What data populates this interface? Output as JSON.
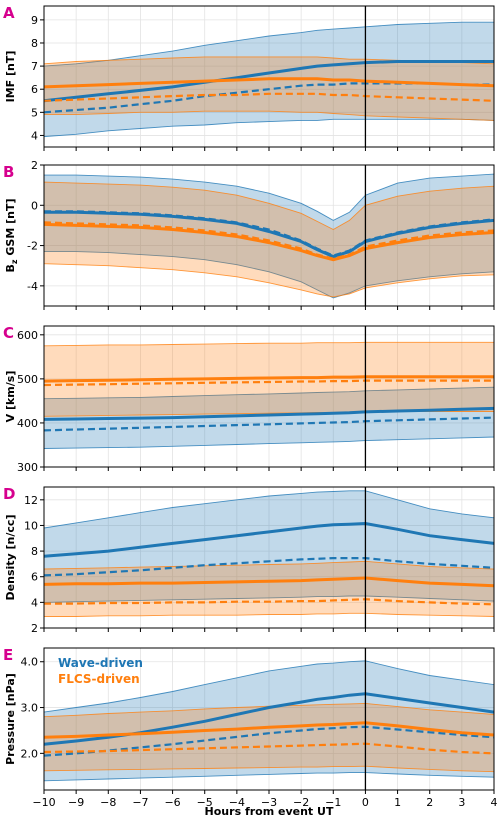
{
  "colors": {
    "wave": "#1f77b4",
    "flcs": "#ff7f0e",
    "panel_label": "#d6008e"
  },
  "legend": {
    "wave": "Wave-driven",
    "flcs": "FLCS-driven"
  },
  "chart_data": {
    "type": "line",
    "xlabel": "Hours from event UT",
    "xlim": [
      -10,
      4
    ],
    "x_ticks": [
      -10,
      -9,
      -8,
      -7,
      -6,
      -5,
      -4,
      -3,
      -2,
      -1,
      0,
      1,
      2,
      3,
      4
    ],
    "x_tick_labels": [
      "−10",
      "−9",
      "−8",
      "−7",
      "−6",
      "−5",
      "−4",
      "−3",
      "−2",
      "−1",
      "0",
      "1",
      "2",
      "3",
      "4"
    ],
    "event_line_x": 0,
    "x": [
      -10,
      -9,
      -8,
      -7,
      -6,
      -5,
      -4,
      -3,
      -2,
      -1.5,
      -1,
      -0.5,
      0,
      1,
      2,
      3,
      4
    ],
    "panels": [
      {
        "label": "A",
        "ylabel": "IMF [nT]",
        "ylim": [
          3.5,
          9.6
        ],
        "yticks": [
          4,
          5,
          6,
          7,
          8,
          9
        ],
        "series": [
          {
            "name": "Wave-driven",
            "mean": [
              5.5,
              5.65,
              5.8,
              5.95,
              6.1,
              6.3,
              6.5,
              6.7,
              6.9,
              7.0,
              7.05,
              7.1,
              7.15,
              7.2,
              7.2,
              7.2,
              7.2
            ],
            "median": [
              5.0,
              5.1,
              5.2,
              5.35,
              5.5,
              5.7,
              5.85,
              6.0,
              6.15,
              6.2,
              6.2,
              6.25,
              6.25,
              6.25,
              6.25,
              6.2,
              6.2
            ],
            "upper": [
              7.0,
              7.1,
              7.25,
              7.45,
              7.65,
              7.9,
              8.1,
              8.3,
              8.45,
              8.55,
              8.6,
              8.65,
              8.7,
              8.8,
              8.85,
              8.9,
              8.9
            ],
            "lower": [
              3.95,
              4.05,
              4.2,
              4.3,
              4.4,
              4.45,
              4.55,
              4.6,
              4.65,
              4.65,
              4.7,
              4.7,
              4.7,
              4.7,
              4.7,
              4.7,
              4.65
            ]
          },
          {
            "name": "FLCS-driven",
            "mean": [
              6.1,
              6.15,
              6.2,
              6.25,
              6.3,
              6.35,
              6.4,
              6.45,
              6.45,
              6.45,
              6.4,
              6.4,
              6.35,
              6.3,
              6.25,
              6.2,
              6.15
            ],
            "median": [
              5.5,
              5.55,
              5.6,
              5.65,
              5.7,
              5.75,
              5.75,
              5.8,
              5.8,
              5.8,
              5.75,
              5.75,
              5.7,
              5.65,
              5.6,
              5.55,
              5.5
            ],
            "upper": [
              7.1,
              7.2,
              7.25,
              7.3,
              7.35,
              7.4,
              7.4,
              7.4,
              7.4,
              7.4,
              7.35,
              7.3,
              7.3,
              7.25,
              7.2,
              7.15,
              7.1
            ],
            "lower": [
              4.9,
              4.9,
              4.95,
              5.0,
              5.0,
              5.05,
              5.05,
              5.05,
              5.0,
              5.0,
              4.95,
              4.9,
              4.85,
              4.8,
              4.75,
              4.7,
              4.65
            ]
          }
        ]
      },
      {
        "label": "B",
        "ylabel": "Bₕ GSM [nT]",
        "ylabel_main": "B",
        "ylabel_sub": "z",
        "ylabel_rest": " GSM [nT]",
        "ylim": [
          -5.0,
          2.0
        ],
        "yticks": [
          -4,
          -2,
          0,
          2
        ],
        "series": [
          {
            "name": "Wave-driven",
            "mean": [
              -0.35,
              -0.35,
              -0.4,
              -0.45,
              -0.55,
              -0.7,
              -0.9,
              -1.3,
              -1.8,
              -2.2,
              -2.55,
              -2.3,
              -1.8,
              -1.4,
              -1.1,
              -0.9,
              -0.75
            ],
            "median": [
              -0.3,
              -0.3,
              -0.35,
              -0.4,
              -0.5,
              -0.65,
              -0.85,
              -1.2,
              -1.75,
              -2.15,
              -2.5,
              -2.25,
              -1.75,
              -1.35,
              -1.05,
              -0.85,
              -0.7
            ],
            "upper": [
              1.5,
              1.5,
              1.45,
              1.4,
              1.3,
              1.15,
              0.95,
              0.6,
              0.1,
              -0.3,
              -0.75,
              -0.35,
              0.5,
              1.1,
              1.35,
              1.45,
              1.55
            ],
            "lower": [
              -2.3,
              -2.3,
              -2.35,
              -2.45,
              -2.55,
              -2.7,
              -2.95,
              -3.3,
              -3.8,
              -4.2,
              -4.6,
              -4.35,
              -4.0,
              -3.75,
              -3.55,
              -3.4,
              -3.3
            ]
          },
          {
            "name": "FLCS-driven",
            "mean": [
              -0.95,
              -1.0,
              -1.05,
              -1.1,
              -1.2,
              -1.35,
              -1.55,
              -1.85,
              -2.25,
              -2.5,
              -2.7,
              -2.5,
              -2.15,
              -1.85,
              -1.6,
              -1.45,
              -1.35
            ],
            "median": [
              -0.85,
              -0.9,
              -0.95,
              -1.0,
              -1.1,
              -1.25,
              -1.45,
              -1.75,
              -2.15,
              -2.45,
              -2.65,
              -2.45,
              -2.05,
              -1.75,
              -1.5,
              -1.35,
              -1.25
            ],
            "upper": [
              1.15,
              1.1,
              1.05,
              1.0,
              0.9,
              0.75,
              0.5,
              0.1,
              -0.4,
              -0.8,
              -1.2,
              -0.75,
              0.0,
              0.45,
              0.7,
              0.85,
              0.95
            ],
            "lower": [
              -2.9,
              -2.95,
              -3.0,
              -3.1,
              -3.2,
              -3.35,
              -3.55,
              -3.85,
              -4.2,
              -4.4,
              -4.55,
              -4.4,
              -4.1,
              -3.85,
              -3.65,
              -3.5,
              -3.45
            ]
          }
        ]
      },
      {
        "label": "C",
        "ylabel": "V [km/s]",
        "ylim": [
          300,
          620
        ],
        "yticks": [
          300,
          400,
          500,
          600
        ],
        "series": [
          {
            "name": "Wave-driven",
            "mean": [
              408,
              409,
              410,
              411,
              412,
              414,
              416,
              418,
              420,
              421,
              422,
              423,
              425,
              427,
              429,
              431,
              433
            ],
            "median": [
              383,
              385,
              387,
              389,
              391,
              393,
              395,
              397,
              399,
              400,
              401,
              402,
              404,
              406,
              408,
              410,
              412
            ],
            "upper": [
              455,
              456,
              457,
              458,
              460,
              462,
              464,
              466,
              468,
              469,
              470,
              471,
              473,
              475,
              477,
              479,
              481
            ],
            "lower": [
              342,
              343,
              344,
              345,
              347,
              349,
              351,
              353,
              355,
              356,
              357,
              358,
              360,
              362,
              364,
              366,
              368
            ]
          },
          {
            "name": "FLCS-driven",
            "mean": [
              495,
              496,
              497,
              498,
              499,
              500,
              501,
              502,
              503,
              503,
              504,
              504,
              505,
              505,
              505,
              505,
              505
            ],
            "median": [
              486,
              487,
              488,
              489,
              490,
              491,
              492,
              493,
              494,
              494,
              495,
              495,
              496,
              496,
              496,
              496,
              496
            ],
            "upper": [
              575,
              576,
              577,
              577,
              578,
              579,
              580,
              581,
              581,
              582,
              582,
              582,
              583,
              583,
              583,
              583,
              583
            ],
            "lower": [
              415,
              416,
              417,
              418,
              419,
              420,
              421,
              422,
              423,
              424,
              424,
              425,
              426,
              426,
              426,
              426,
              426
            ]
          }
        ]
      },
      {
        "label": "D",
        "ylabel": "Density [n/cc]",
        "ylim": [
          2,
          13
        ],
        "yticks": [
          2,
          4,
          6,
          8,
          10,
          12
        ],
        "series": [
          {
            "name": "Wave-driven",
            "mean": [
              7.6,
              7.8,
              8.0,
              8.3,
              8.6,
              8.9,
              9.2,
              9.5,
              9.8,
              9.95,
              10.05,
              10.1,
              10.15,
              9.7,
              9.2,
              8.9,
              8.6
            ],
            "median": [
              6.1,
              6.2,
              6.35,
              6.5,
              6.7,
              6.9,
              7.05,
              7.2,
              7.35,
              7.4,
              7.45,
              7.45,
              7.45,
              7.2,
              7.0,
              6.85,
              6.7
            ],
            "upper": [
              9.8,
              10.2,
              10.6,
              11.0,
              11.4,
              11.7,
              12.0,
              12.3,
              12.5,
              12.6,
              12.65,
              12.7,
              12.7,
              12.0,
              11.3,
              10.9,
              10.6
            ],
            "lower": [
              4.0,
              4.05,
              4.1,
              4.15,
              4.2,
              4.25,
              4.3,
              4.35,
              4.4,
              4.45,
              4.45,
              4.5,
              4.5,
              4.4,
              4.3,
              4.2,
              4.1
            ]
          },
          {
            "name": "FLCS-driven",
            "mean": [
              5.4,
              5.45,
              5.45,
              5.5,
              5.5,
              5.55,
              5.6,
              5.65,
              5.7,
              5.75,
              5.8,
              5.85,
              5.9,
              5.7,
              5.5,
              5.4,
              5.3
            ],
            "median": [
              3.9,
              3.9,
              3.95,
              3.95,
              4.0,
              4.0,
              4.05,
              4.05,
              4.1,
              4.1,
              4.15,
              4.2,
              4.25,
              4.1,
              4.0,
              3.9,
              3.85
            ],
            "upper": [
              6.6,
              6.65,
              6.7,
              6.75,
              6.8,
              6.85,
              6.9,
              6.95,
              7.0,
              7.05,
              7.1,
              7.15,
              7.2,
              7.0,
              6.8,
              6.7,
              6.6
            ],
            "lower": [
              2.9,
              2.9,
              2.95,
              2.95,
              3.0,
              3.0,
              3.0,
              3.05,
              3.05,
              3.1,
              3.1,
              3.15,
              3.15,
              3.05,
              3.0,
              2.95,
              2.9
            ]
          }
        ]
      },
      {
        "label": "E",
        "ylabel": "Pressure [nPa]",
        "ylim": [
          1.2,
          4.3
        ],
        "yticks": [
          2.0,
          3.0,
          4.0
        ],
        "y_tick_labels": [
          "2.0",
          "3.0",
          "4.0"
        ],
        "series": [
          {
            "name": "Wave-driven",
            "mean": [
              2.2,
              2.27,
              2.35,
              2.45,
              2.57,
              2.7,
              2.85,
              3.0,
              3.12,
              3.18,
              3.22,
              3.27,
              3.3,
              3.2,
              3.1,
              3.0,
              2.9
            ],
            "median": [
              1.95,
              2.0,
              2.06,
              2.13,
              2.2,
              2.28,
              2.36,
              2.44,
              2.5,
              2.53,
              2.55,
              2.57,
              2.58,
              2.52,
              2.46,
              2.4,
              2.35
            ],
            "upper": [
              2.9,
              3.0,
              3.1,
              3.22,
              3.35,
              3.5,
              3.65,
              3.8,
              3.9,
              3.95,
              3.97,
              4.0,
              4.02,
              3.85,
              3.7,
              3.6,
              3.5
            ],
            "lower": [
              1.4,
              1.42,
              1.44,
              1.46,
              1.48,
              1.5,
              1.52,
              1.54,
              1.56,
              1.57,
              1.57,
              1.58,
              1.58,
              1.55,
              1.52,
              1.5,
              1.48
            ]
          },
          {
            "name": "FLCS-driven",
            "mean": [
              2.35,
              2.37,
              2.4,
              2.43,
              2.46,
              2.5,
              2.53,
              2.57,
              2.6,
              2.62,
              2.63,
              2.65,
              2.67,
              2.6,
              2.52,
              2.45,
              2.4
            ],
            "median": [
              2.03,
              2.04,
              2.05,
              2.07,
              2.09,
              2.11,
              2.13,
              2.15,
              2.17,
              2.18,
              2.19,
              2.2,
              2.21,
              2.15,
              2.08,
              2.03,
              2.0
            ],
            "upper": [
              2.8,
              2.83,
              2.87,
              2.9,
              2.93,
              2.97,
              3.0,
              3.03,
              3.05,
              3.06,
              3.07,
              3.08,
              3.09,
              3.02,
              2.95,
              2.9,
              2.85
            ],
            "lower": [
              1.62,
              1.63,
              1.64,
              1.65,
              1.66,
              1.67,
              1.68,
              1.69,
              1.7,
              1.7,
              1.71,
              1.71,
              1.72,
              1.68,
              1.65,
              1.62,
              1.6
            ]
          }
        ]
      }
    ]
  }
}
